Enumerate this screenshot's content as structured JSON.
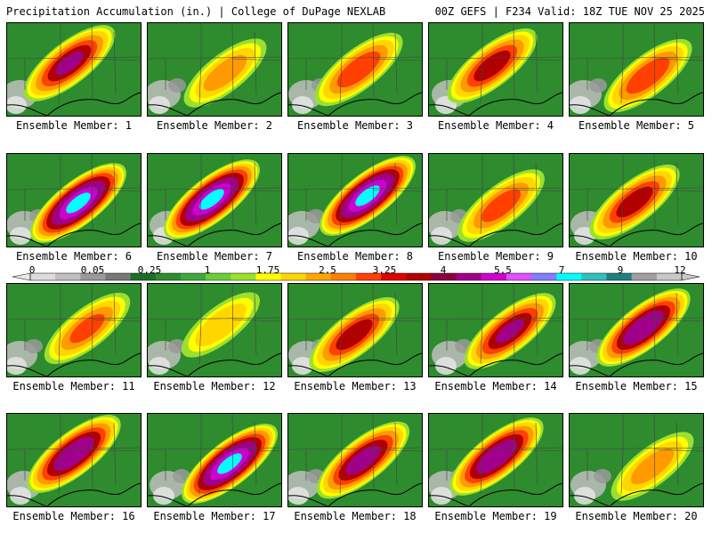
{
  "header": {
    "left": "Precipitation Accumulation (in.) | College of DuPage NEXLAB",
    "right": "00Z GEFS | F234 Valid: 18Z TUE NOV 25 2025"
  },
  "members": [
    {
      "label": "Ensemble Member: 1",
      "peak": 4.5
    },
    {
      "label": "Ensemble Member: 2",
      "peak": 2.5
    },
    {
      "label": "Ensemble Member: 3",
      "peak": 3.5
    },
    {
      "label": "Ensemble Member: 4",
      "peak": 4.0
    },
    {
      "label": "Ensemble Member: 5",
      "peak": 3.5
    },
    {
      "label": "Ensemble Member: 6",
      "peak": 7.0
    },
    {
      "label": "Ensemble Member: 7",
      "peak": 7.0
    },
    {
      "label": "Ensemble Member: 8",
      "peak": 7.0
    },
    {
      "label": "Ensemble Member: 9",
      "peak": 3.25
    },
    {
      "label": "Ensemble Member: 10",
      "peak": 4.0
    },
    {
      "label": "Ensemble Member: 11",
      "peak": 3.0
    },
    {
      "label": "Ensemble Member: 12",
      "peak": 2.0
    },
    {
      "label": "Ensemble Member: 13",
      "peak": 4.0
    },
    {
      "label": "Ensemble Member: 14",
      "peak": 4.5
    },
    {
      "label": "Ensemble Member: 15",
      "peak": 5.5
    },
    {
      "label": "Ensemble Member: 16",
      "peak": 5.5
    },
    {
      "label": "Ensemble Member: 17",
      "peak": 7.0
    },
    {
      "label": "Ensemble Member: 18",
      "peak": 5.0
    },
    {
      "label": "Ensemble Member: 19",
      "peak": 5.5
    },
    {
      "label": "Ensemble Member: 20",
      "peak": 2.5
    }
  ],
  "colorbar": {
    "labels": [
      "0",
      "0.05",
      "0.25",
      "1",
      "1.75",
      "2.5",
      "3.25",
      "4",
      "5.5",
      "7",
      "9",
      "12"
    ],
    "colors": [
      "#dcdcdc",
      "#bebebe",
      "#9a9a9a",
      "#787878",
      "#1e6e28",
      "#2e8b2e",
      "#3ea83a",
      "#6ccc3c",
      "#9be030",
      "#ffff00",
      "#ffd700",
      "#ffa500",
      "#ff7f00",
      "#ff4000",
      "#e00000",
      "#b00000",
      "#8b0040",
      "#a0008a",
      "#d000d0",
      "#e050ff",
      "#8080ff",
      "#00ffff",
      "#30c0c0",
      "#208080",
      "#a0a0a0",
      "#c8c8c8"
    ]
  }
}
